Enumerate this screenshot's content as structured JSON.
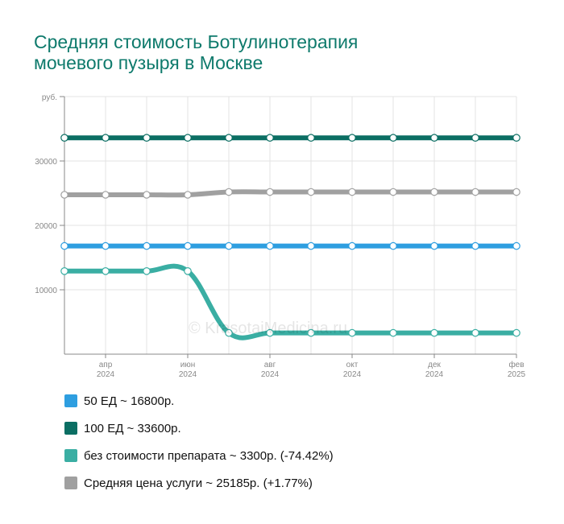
{
  "title_lines": [
    "Средняя стоимость Ботулинотерапия",
    "мочевого пузыря в Москве"
  ],
  "watermark": "© KrasotaiMedicina.ru",
  "chart_data": {
    "type": "line",
    "y_unit": "руб.",
    "ylim": [
      0,
      40000
    ],
    "yticks": [
      10000,
      20000,
      30000
    ],
    "x": [
      "2024-03",
      "2024-04",
      "2024-05",
      "2024-06",
      "2024-07",
      "2024-08",
      "2024-09",
      "2024-10",
      "2024-11",
      "2024-12",
      "2025-01",
      "2025-02"
    ],
    "xtick_labels": [
      {
        "i": 1,
        "month": "апр",
        "year": "2024"
      },
      {
        "i": 3,
        "month": "июн",
        "year": "2024"
      },
      {
        "i": 5,
        "month": "авг",
        "year": "2024"
      },
      {
        "i": 7,
        "month": "окт",
        "year": "2024"
      },
      {
        "i": 9,
        "month": "дек",
        "year": "2024"
      },
      {
        "i": 11,
        "month": "фев",
        "year": "2025"
      }
    ],
    "grid": true,
    "legend_position": "bottom",
    "series": [
      {
        "name": "50 ЕД",
        "summary": "50 ЕД ~ 16800р.",
        "color": "#2e9ee0",
        "values": [
          16800,
          16800,
          16800,
          16800,
          16800,
          16800,
          16800,
          16800,
          16800,
          16800,
          16800,
          16800
        ]
      },
      {
        "name": "100 ЕД",
        "summary": "100 ЕД ~ 33600р.",
        "color": "#0b6e63",
        "values": [
          33600,
          33600,
          33600,
          33600,
          33600,
          33600,
          33600,
          33600,
          33600,
          33600,
          33600,
          33600
        ]
      },
      {
        "name": "без стоимости препарата",
        "summary": "без стоимости препарата ~ 3300р. (-74.42%)",
        "color": "#3aaea3",
        "values": [
          12900,
          12900,
          12900,
          12900,
          3300,
          3300,
          3300,
          3300,
          3300,
          3300,
          3300,
          3300
        ]
      },
      {
        "name": "Средняя цена услуги",
        "summary": "Средняя цена услуги ~ 25185р. (+1.77%)",
        "color": "#a0a0a0",
        "values": [
          24750,
          24750,
          24750,
          24750,
          25185,
          25185,
          25185,
          25185,
          25185,
          25185,
          25185,
          25185
        ]
      }
    ]
  }
}
